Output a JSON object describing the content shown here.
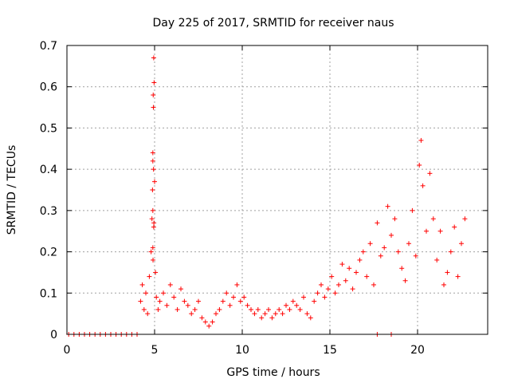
{
  "chart_data": {
    "type": "scatter",
    "title": "Day 225 of 2017, SRMTID for receiver naus",
    "xlabel": "GPS time / hours",
    "ylabel": "SRMTID / TECUs",
    "xlim": [
      0,
      24
    ],
    "ylim": [
      0,
      0.7
    ],
    "grid": true,
    "x_ticks": [
      "0",
      "5",
      "10",
      "15",
      "20"
    ],
    "y_ticks": [
      "0",
      "0.1",
      "0.2",
      "0.3",
      "0.4",
      "0.5",
      "0.6",
      "0.7"
    ],
    "marker": "+",
    "color": "#ff0000",
    "series": [
      {
        "name": "SRMTID",
        "x": [
          0.1,
          0.4,
          0.7,
          1.0,
          1.3,
          1.6,
          1.9,
          2.2,
          2.5,
          2.8,
          3.1,
          3.4,
          3.7,
          4.0,
          17.7,
          18.5,
          4.2,
          4.3,
          4.4,
          4.5,
          4.6,
          4.7,
          4.8,
          4.85,
          4.9,
          4.92,
          4.95,
          4.97,
          5.0,
          5.05,
          5.1,
          5.2,
          4.9,
          4.9,
          4.95,
          4.88,
          4.93,
          4.9,
          4.91,
          4.96,
          4.94,
          5.3,
          5.5,
          5.7,
          5.9,
          6.1,
          6.3,
          6.5,
          6.7,
          6.9,
          7.1,
          7.3,
          7.5,
          7.7,
          7.9,
          8.1,
          8.3,
          8.5,
          8.7,
          8.9,
          9.1,
          9.3,
          9.5,
          9.7,
          9.9,
          10.1,
          10.3,
          10.5,
          10.7,
          10.9,
          11.1,
          11.3,
          11.5,
          11.7,
          11.9,
          12.1,
          12.3,
          12.5,
          12.7,
          12.9,
          13.1,
          13.3,
          13.5,
          13.7,
          13.9,
          14.1,
          14.3,
          14.5,
          14.7,
          14.9,
          15.1,
          15.3,
          15.5,
          15.7,
          15.9,
          16.1,
          16.3,
          16.5,
          16.7,
          16.9,
          17.1,
          17.3,
          17.5,
          17.7,
          17.9,
          18.1,
          18.3,
          18.5,
          18.7,
          18.9,
          19.1,
          19.3,
          19.5,
          19.7,
          19.9,
          20.1,
          20.2,
          20.3,
          20.5,
          20.7,
          20.9,
          21.1,
          21.3,
          21.5,
          21.7,
          21.9,
          22.1,
          22.3,
          22.5,
          22.7
        ],
        "y": [
          0,
          0,
          0,
          0,
          0,
          0,
          0,
          0,
          0,
          0,
          0,
          0,
          0,
          0,
          0,
          0,
          0.08,
          0.12,
          0.06,
          0.1,
          0.05,
          0.14,
          0.2,
          0.28,
          0.42,
          0.58,
          0.67,
          0.61,
          0.37,
          0.15,
          0.09,
          0.06,
          0.44,
          0.3,
          0.26,
          0.35,
          0.55,
          0.21,
          0.18,
          0.27,
          0.4,
          0.08,
          0.1,
          0.07,
          0.12,
          0.09,
          0.06,
          0.11,
          0.08,
          0.07,
          0.05,
          0.06,
          0.08,
          0.04,
          0.03,
          0.02,
          0.03,
          0.05,
          0.06,
          0.08,
          0.1,
          0.07,
          0.09,
          0.12,
          0.08,
          0.09,
          0.07,
          0.06,
          0.05,
          0.06,
          0.04,
          0.05,
          0.06,
          0.04,
          0.05,
          0.06,
          0.05,
          0.07,
          0.06,
          0.08,
          0.07,
          0.06,
          0.09,
          0.05,
          0.04,
          0.08,
          0.1,
          0.12,
          0.09,
          0.11,
          0.14,
          0.1,
          0.12,
          0.17,
          0.13,
          0.16,
          0.11,
          0.15,
          0.18,
          0.2,
          0.14,
          0.22,
          0.12,
          0.27,
          0.19,
          0.21,
          0.31,
          0.24,
          0.28,
          0.2,
          0.16,
          0.13,
          0.22,
          0.3,
          0.19,
          0.41,
          0.47,
          0.36,
          0.25,
          0.39,
          0.28,
          0.18,
          0.25,
          0.12,
          0.15,
          0.2,
          0.26,
          0.14,
          0.22,
          0.28
        ]
      }
    ]
  }
}
